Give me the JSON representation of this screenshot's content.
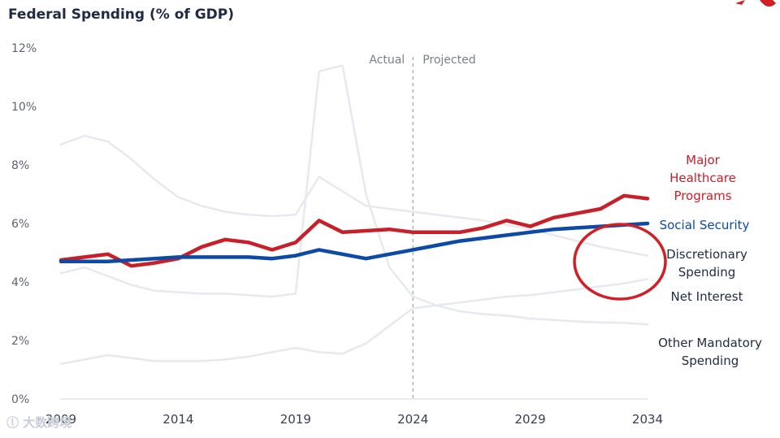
{
  "colors": {
    "healthcare": "#c8202a",
    "social_security": "#0d4aa6",
    "faint": "#e7e9f0",
    "annotation": "#d01f25",
    "legend_dark": "#1f2a44"
  },
  "watermark": "大数跨境",
  "chart_data": {
    "type": "line",
    "title": "Federal Spending (% of GDP)",
    "xlabel": "",
    "ylabel": "",
    "ylim": [
      0,
      12
    ],
    "xlim": [
      2009,
      2034
    ],
    "y_ticks": [
      "0%",
      "2%",
      "4%",
      "6%",
      "8%",
      "10%",
      "12%"
    ],
    "x_ticks": [
      "2009",
      "2014",
      "2019",
      "2024",
      "2029",
      "2034"
    ],
    "divider": {
      "x": 2024,
      "left_label": "Actual",
      "right_label": "Projected"
    },
    "series": [
      {
        "name": "Major Healthcare Programs",
        "label_lines": [
          "Major",
          "Healthcare",
          "Programs"
        ],
        "color_key": "healthcare",
        "emphasis": true,
        "x": [
          2009,
          2010,
          2011,
          2012,
          2013,
          2014,
          2015,
          2016,
          2017,
          2018,
          2019,
          2020,
          2021,
          2022,
          2023,
          2024,
          2025,
          2026,
          2027,
          2028,
          2029,
          2030,
          2031,
          2032,
          2033,
          2034
        ],
        "values": [
          4.75,
          4.85,
          4.95,
          4.55,
          4.65,
          4.8,
          5.2,
          5.45,
          5.35,
          5.1,
          5.35,
          6.1,
          5.7,
          5.75,
          5.8,
          5.7,
          5.7,
          5.7,
          5.85,
          6.1,
          5.9,
          6.2,
          6.35,
          6.5,
          6.95,
          6.85
        ]
      },
      {
        "name": "Social Security",
        "label_lines": [
          "Social Security"
        ],
        "color_key": "social_security",
        "emphasis": true,
        "x": [
          2009,
          2010,
          2011,
          2012,
          2013,
          2014,
          2015,
          2016,
          2017,
          2018,
          2019,
          2020,
          2021,
          2022,
          2023,
          2024,
          2025,
          2026,
          2027,
          2028,
          2029,
          2030,
          2031,
          2032,
          2033,
          2034
        ],
        "values": [
          4.7,
          4.7,
          4.7,
          4.75,
          4.8,
          4.85,
          4.85,
          4.85,
          4.85,
          4.8,
          4.9,
          5.1,
          4.95,
          4.8,
          4.95,
          5.1,
          5.25,
          5.4,
          5.5,
          5.6,
          5.7,
          5.8,
          5.85,
          5.9,
          5.95,
          6.0
        ]
      },
      {
        "name": "Discretionary Spending",
        "label_lines": [
          "Discretionary",
          "Spending"
        ],
        "color_key": "faint",
        "emphasis": false,
        "x": [
          2009,
          2010,
          2011,
          2012,
          2013,
          2014,
          2015,
          2016,
          2017,
          2018,
          2019,
          2020,
          2021,
          2022,
          2023,
          2024,
          2025,
          2026,
          2027,
          2028,
          2029,
          2030,
          2031,
          2032,
          2033,
          2034
        ],
        "values": [
          8.7,
          9.0,
          8.8,
          8.2,
          7.5,
          6.9,
          6.6,
          6.4,
          6.3,
          6.25,
          6.3,
          7.6,
          7.1,
          6.6,
          6.5,
          6.4,
          6.3,
          6.2,
          6.1,
          5.95,
          5.8,
          5.6,
          5.4,
          5.2,
          5.05,
          4.9
        ]
      },
      {
        "name": "Net Interest",
        "label_lines": [
          "Net Interest"
        ],
        "color_key": "faint",
        "emphasis": false,
        "x": [
          2009,
          2010,
          2011,
          2012,
          2013,
          2014,
          2015,
          2016,
          2017,
          2018,
          2019,
          2020,
          2021,
          2022,
          2023,
          2024,
          2025,
          2026,
          2027,
          2028,
          2029,
          2030,
          2031,
          2032,
          2033,
          2034
        ],
        "values": [
          1.2,
          1.35,
          1.5,
          1.4,
          1.3,
          1.3,
          1.3,
          1.35,
          1.45,
          1.6,
          1.75,
          1.6,
          1.55,
          1.9,
          2.5,
          3.1,
          3.2,
          3.3,
          3.4,
          3.5,
          3.55,
          3.65,
          3.75,
          3.85,
          3.95,
          4.1
        ]
      },
      {
        "name": "Other Mandatory Spending",
        "label_lines": [
          "Other Mandatory",
          "Spending"
        ],
        "color_key": "faint",
        "emphasis": false,
        "x": [
          2009,
          2010,
          2011,
          2012,
          2013,
          2014,
          2015,
          2016,
          2017,
          2018,
          2019,
          2020,
          2021,
          2022,
          2023,
          2024,
          2025,
          2026,
          2027,
          2028,
          2029,
          2030,
          2031,
          2032,
          2033,
          2034
        ],
        "values": [
          4.3,
          4.5,
          4.2,
          3.9,
          3.7,
          3.65,
          3.6,
          3.6,
          3.55,
          3.5,
          3.6,
          11.2,
          11.4,
          7.0,
          4.5,
          3.5,
          3.2,
          3.0,
          2.9,
          2.85,
          2.75,
          2.7,
          2.65,
          2.62,
          2.6,
          2.55
        ]
      }
    ],
    "annotation": {
      "type": "ellipse",
      "around": [
        "Discretionary Spending",
        "Net Interest"
      ]
    }
  }
}
